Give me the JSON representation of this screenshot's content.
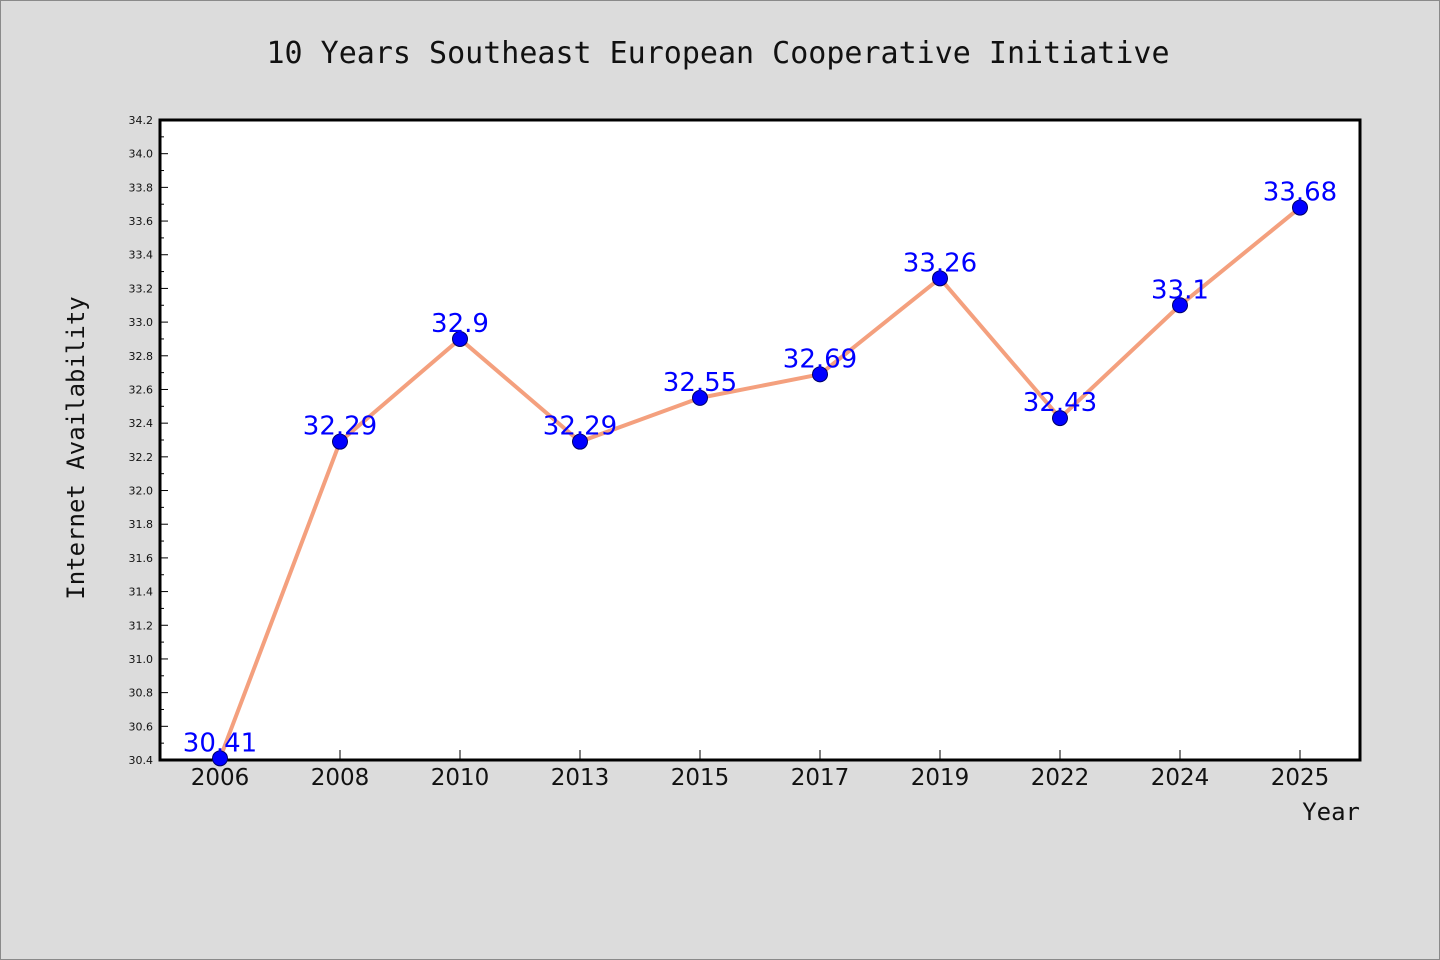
{
  "chart_data": {
    "type": "line",
    "title": "10 Years Southeast European Cooperative Initiative",
    "xlabel": "Year",
    "ylabel": "Internet Availability",
    "categories": [
      "2006",
      "2008",
      "2010",
      "2013",
      "2015",
      "2017",
      "2019",
      "2022",
      "2024",
      "2025"
    ],
    "series": [
      {
        "values": [
          30.41,
          32.29,
          32.9,
          32.29,
          32.55,
          32.69,
          33.26,
          32.43,
          33.1,
          33.68
        ],
        "labels": [
          "30.41",
          "32.29",
          "32.9",
          "32.29",
          "32.55",
          "32.69",
          "33.26",
          "32.43",
          "33.1",
          "33.68"
        ]
      }
    ],
    "ylim": [
      30.4,
      34.2
    ],
    "yticks": [
      "30.4",
      "30.6",
      "30.8",
      "31.0",
      "31.2",
      "31.4",
      "31.6",
      "31.8",
      "32.0",
      "32.2",
      "32.4",
      "32.6",
      "32.8",
      "33.0",
      "33.2",
      "33.4",
      "33.6",
      "33.8",
      "34.0",
      "34.2"
    ],
    "grid": false,
    "colors": {
      "line": "#f4a07e",
      "marker": "#0000ff",
      "data_label": "#0000ff",
      "plot_background": "#ffffff",
      "figure_background": "#dcdcdc"
    }
  }
}
